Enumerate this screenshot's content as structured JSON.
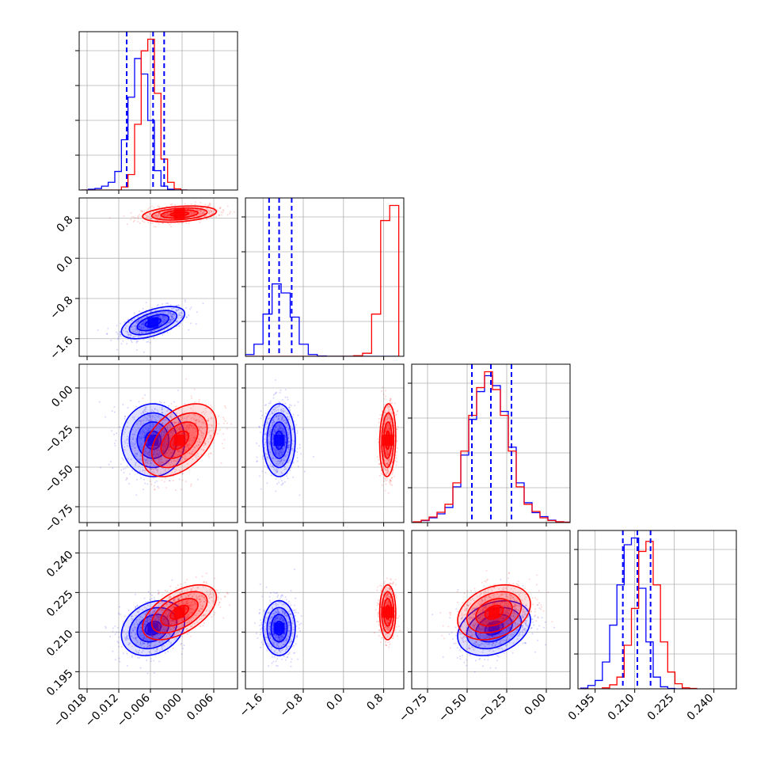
{
  "figure": {
    "type": "corner-plot",
    "n_params": 4
  },
  "colors": {
    "series_a": "#0000ff",
    "series_b": "#ff0000",
    "grid": "#b0b0b0",
    "axis": "#000000"
  },
  "chart_data": {
    "type": "corner",
    "series": [
      {
        "color": "#0000ff",
        "means": [
          -0.0055,
          -1.28,
          -0.33,
          0.2115
        ],
        "sigmas": [
          0.003,
          0.16,
          0.115,
          0.0052
        ],
        "quantiles_16_50_84": [
          [
            -0.0105,
            -0.0055,
            -0.0034
          ],
          [
            -1.48,
            -1.28,
            -1.03
          ],
          [
            -0.47,
            -0.35,
            -0.22
          ],
          [
            0.2055,
            0.211,
            0.216
          ]
        ],
        "correlations": {
          "0-1": 0.55,
          "0-2": 0.0,
          "1-2": 0.0,
          "0-3": 0.25,
          "1-3": 0.0,
          "2-3": 0.3
        }
      },
      {
        "color": "#ff0000",
        "means": [
          -0.0005,
          0.88,
          -0.33,
          0.2175
        ],
        "sigmas": [
          0.0035,
          0.08,
          0.115,
          0.0052
        ],
        "correlations": {
          "0-1": 0.3,
          "0-2": 0.45,
          "1-2": 0.1,
          "0-3": 0.55,
          "1-3": 0.0,
          "2-3": 0.3
        }
      }
    ],
    "histograms": [
      {
        "param": 0,
        "bin_start": -0.019,
        "bin_width": 0.00125,
        "series_a": [
          0,
          0.2,
          0.4,
          1,
          2,
          4.8,
          13,
          24,
          34,
          30,
          18,
          5,
          1,
          0.2,
          0,
          0
        ],
        "series_b": [
          0,
          0,
          0,
          0,
          0,
          0,
          0.8,
          4,
          17,
          36,
          39,
          25,
          8,
          2,
          0.3,
          0
        ]
      },
      {
        "param": 1,
        "bin_start": -1.96,
        "bin_width": 0.18,
        "series_a": [
          0.6,
          4,
          14,
          24,
          21,
          13,
          4,
          0.6,
          0.1,
          0,
          0,
          0,
          0,
          0,
          0,
          0,
          0
        ],
        "series_b": [
          0,
          0,
          0,
          0,
          0,
          0,
          0,
          0,
          0,
          0,
          0,
          0,
          0.2,
          1,
          14,
          45,
          50
        ]
      },
      {
        "param": 2,
        "bin_start": -0.84,
        "bin_width": 0.05,
        "series_a": [
          0.1,
          0.5,
          1.2,
          2.2,
          3.8,
          9.0,
          17.0,
          26.0,
          33.0,
          37.0,
          34.5,
          28.0,
          19.0,
          10.0,
          5.0,
          2.5,
          1.5,
          0.6,
          0.2,
          0.1
        ],
        "series_b": [
          0.2,
          0.6,
          1.4,
          2.6,
          4.6,
          10.0,
          18.0,
          27.0,
          34.0,
          38.0,
          33.5,
          27.0,
          18.0,
          9.0,
          4.6,
          2.8,
          1.2,
          0.5,
          0.2,
          0.1
        ],
        "note_range": [
          -0.85,
          0.15
        ]
      },
      {
        "param": 3,
        "bin_start": 0.1895,
        "bin_width": 0.00275,
        "series_a": [
          0.2,
          1,
          2.5,
          8,
          19,
          31,
          43,
          45,
          30,
          14,
          3.5,
          0.6,
          0.1,
          0,
          0,
          0
        ],
        "series_b": [
          0,
          0,
          0,
          0.3,
          1.2,
          3.5,
          13,
          24,
          41,
          44,
          31,
          14,
          5,
          1.5,
          0.3,
          0.1
        ]
      }
    ],
    "axes": [
      {
        "range": [
          -0.0195,
          0.0105
        ],
        "ticks": [
          -0.018,
          -0.012,
          -0.006,
          0.0,
          0.006
        ],
        "tick_labels": [
          "−0.018",
          "−0.012",
          "−0.006",
          "0.000",
          "0.006"
        ]
      },
      {
        "range": [
          -1.95,
          1.2
        ],
        "ticks": [
          -1.6,
          -0.8,
          0.0,
          0.8
        ],
        "tick_labels": [
          "−1.6",
          "−0.8",
          "0.0",
          "0.8"
        ]
      },
      {
        "range": [
          -0.85,
          0.15
        ],
        "ticks": [
          -0.75,
          -0.5,
          -0.25,
          0.0
        ],
        "tick_labels": [
          "−0.75",
          "−0.50",
          "−0.25",
          "0.00"
        ]
      },
      {
        "range": [
          0.1885,
          0.2485
        ],
        "ticks": [
          0.195,
          0.21,
          0.225,
          0.24
        ],
        "tick_labels": [
          "0.195",
          "0.210",
          "0.225",
          "0.240"
        ]
      }
    ],
    "grid": true,
    "legend": null
  }
}
